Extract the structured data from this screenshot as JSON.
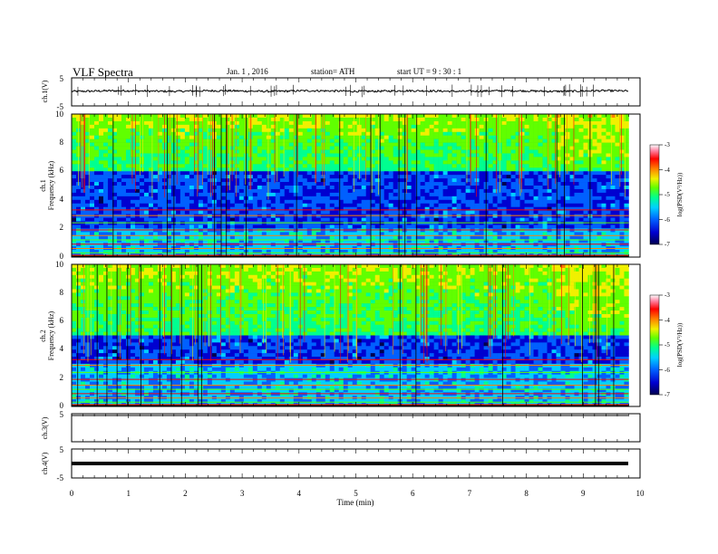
{
  "header": {
    "title": "VLF  Spectra",
    "date": "Jan.  1  , 2016",
    "station": "station= ATH",
    "start_ut": "start  UT  =    9  : 30 : 1"
  },
  "chart_data": [
    {
      "type": "line",
      "name": "ch1-waveform",
      "ylabel": "ch.1(V)",
      "ylim": [
        -5,
        5
      ],
      "yticks": [
        "5",
        "-5"
      ],
      "mean_value": 0.3,
      "amplitude": 0.35
    },
    {
      "type": "heatmap",
      "name": "ch1-spectrogram",
      "ylabel_top": "ch.1",
      "ylabel": "Frequency  (kHz)",
      "ylim": [
        0,
        10
      ],
      "yticks": [
        "0",
        "2",
        "4",
        "6",
        "8",
        "10"
      ],
      "colorbar": {
        "label": "log(PSD(V²/Hz))",
        "range": [
          -7,
          -3
        ],
        "ticks": [
          "-3",
          "-4",
          "-5",
          "-6",
          "-7"
        ]
      },
      "noise_floor_band_khz": [
        2,
        6
      ]
    },
    {
      "type": "heatmap",
      "name": "ch2-spectrogram",
      "ylabel_top": "ch.2",
      "ylabel": "Frequency  (kHz)",
      "ylim": [
        0,
        10
      ],
      "yticks": [
        "0",
        "2",
        "4",
        "6",
        "8",
        "10"
      ],
      "colorbar": {
        "label": "log(PSD(V²/Hz))",
        "range": [
          -7,
          -3
        ],
        "ticks": [
          "-3",
          "-4",
          "-5",
          "-6",
          "-7"
        ]
      },
      "noise_floor_band_khz": [
        3,
        5
      ]
    },
    {
      "type": "line",
      "name": "ch3-waveform",
      "ylabel": "ch.3(V)",
      "ylim": [
        -5,
        5
      ],
      "yticks": [
        "5"
      ],
      "mean_value": 5
    },
    {
      "type": "line",
      "name": "ch4-waveform",
      "ylabel": "ch.4(V)",
      "ylim": [
        -5,
        5
      ],
      "yticks": [
        "5",
        "-5"
      ],
      "mean_value": 0
    }
  ],
  "xaxis": {
    "label": "Time  (min)",
    "xlim": [
      0,
      10
    ],
    "data_end": 9.8,
    "ticks": [
      "0",
      "1",
      "2",
      "3",
      "4",
      "5",
      "6",
      "7",
      "8",
      "9",
      "10"
    ]
  },
  "colors": {
    "colormap": [
      "#000050",
      "#0000d0",
      "#0060ff",
      "#00d0ff",
      "#00ff90",
      "#60ff00",
      "#f0f000",
      "#ff8000",
      "#ff0000",
      "#ff80a0",
      "#ffffff"
    ]
  }
}
